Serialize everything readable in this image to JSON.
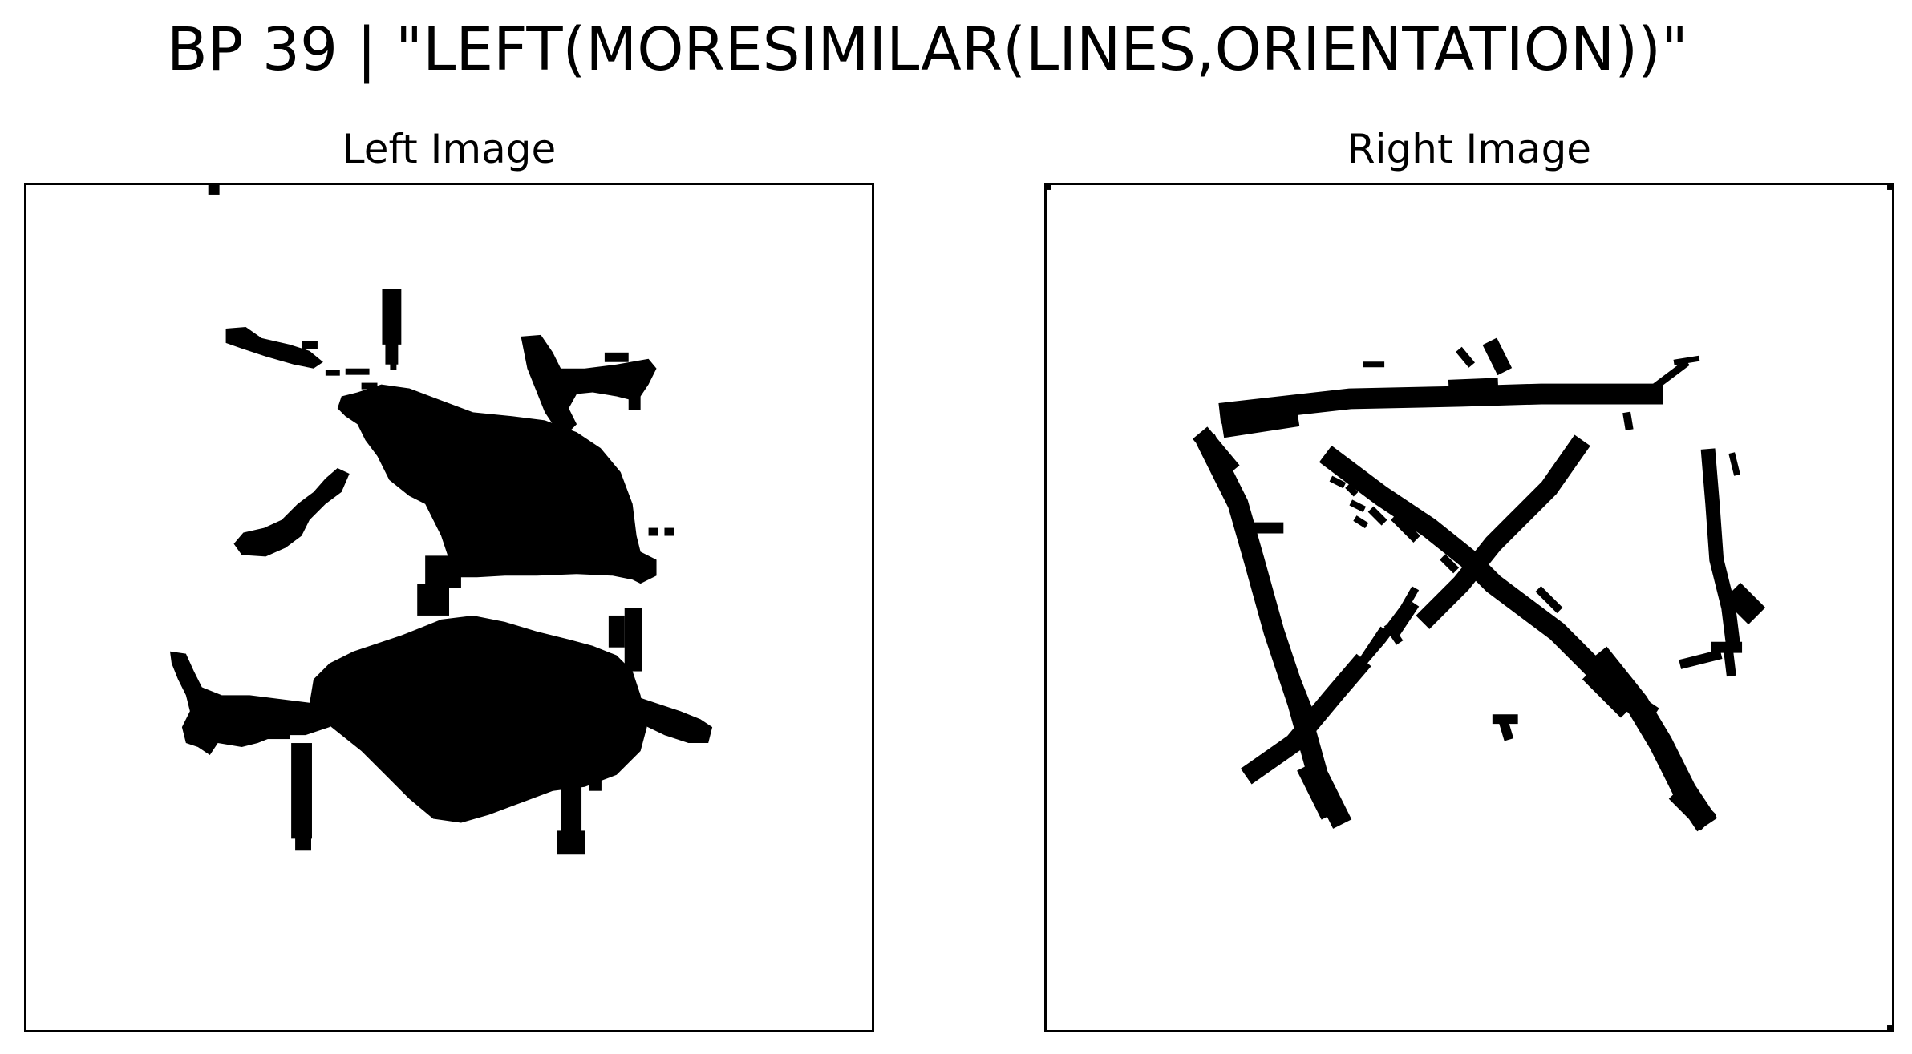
{
  "figure": {
    "title": "BP 39 | \"LEFT(MORESIMILAR(LINES,ORIENTATION))\"",
    "panels": [
      {
        "title": "Left Image",
        "content": "two black blobs with radiating lines (binary bitmap)"
      },
      {
        "title": "Right Image",
        "content": "black hand-drawn line segments (binary bitmap)"
      }
    ]
  },
  "colors": {
    "ink": "#000000",
    "background": "#ffffff"
  }
}
